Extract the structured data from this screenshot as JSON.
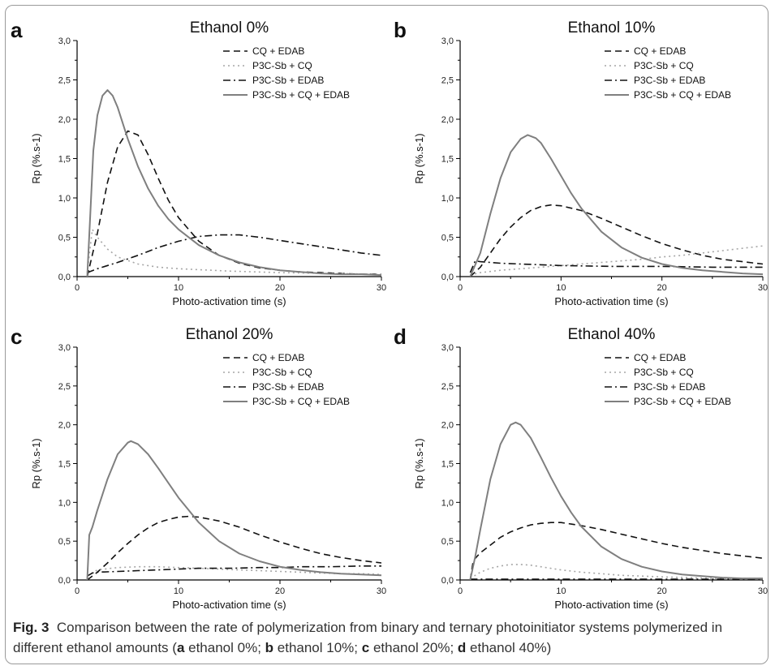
{
  "caption": {
    "label": "Fig. 3",
    "pre": "Comparison between the rate of polymerization from binary and ternary photoinitiator systems polymerized in different ethanol amounts (",
    "items": [
      {
        "letter": "a",
        "text": " ethanol 0%; "
      },
      {
        "letter": "b",
        "text": " ethanol 10%; "
      },
      {
        "letter": "c",
        "text": " ethanol 20%; "
      },
      {
        "letter": "d",
        "text": " ethanol 40%"
      }
    ],
    "post": ")"
  },
  "colors": {
    "dark": "#111111",
    "light_gray": "#a6a6a6",
    "mid_gray": "#7f7f7f",
    "axis": "#000000"
  },
  "chart_data": [
    {
      "type": "line",
      "panel": "a",
      "title": "Ethanol 0%",
      "xlabel": "Photo-activation time (s)",
      "ylabel": "Rp (%.s-1)",
      "xlim": [
        0,
        30
      ],
      "ylim": [
        0,
        3
      ],
      "xticks": [
        "0",
        "10",
        "20",
        "30"
      ],
      "yticks": [
        "0,0",
        "0,5",
        "1,0",
        "1,5",
        "2,0",
        "2,5",
        "3,0"
      ],
      "grid": false,
      "legend": "top-right",
      "series": [
        {
          "name": "CQ + EDAB",
          "style": "dash",
          "x": [
            1,
            2,
            3,
            4,
            5,
            6,
            7,
            8,
            9,
            10,
            12,
            14,
            16,
            18,
            20,
            22,
            24,
            26,
            28,
            30
          ],
          "y": [
            0,
            0.55,
            1.2,
            1.65,
            1.85,
            1.8,
            1.55,
            1.25,
            0.97,
            0.75,
            0.45,
            0.27,
            0.17,
            0.11,
            0.08,
            0.06,
            0.05,
            0.04,
            0.03,
            0.03
          ]
        },
        {
          "name": "P3C-Sb + CQ",
          "style": "dot",
          "x": [
            1,
            1.5,
            2,
            3,
            4,
            6,
            8,
            10,
            15,
            20,
            25,
            30
          ],
          "y": [
            0.05,
            0.6,
            0.5,
            0.35,
            0.25,
            0.16,
            0.12,
            0.1,
            0.07,
            0.05,
            0.04,
            0.03
          ]
        },
        {
          "name": "P3C-Sb + EDAB",
          "style": "dashdot",
          "x": [
            1,
            2,
            4,
            6,
            8,
            10,
            12,
            14,
            16,
            18,
            20,
            22,
            24,
            26,
            28,
            30
          ],
          "y": [
            0.05,
            0.1,
            0.18,
            0.27,
            0.37,
            0.45,
            0.51,
            0.53,
            0.53,
            0.5,
            0.46,
            0.42,
            0.38,
            0.34,
            0.3,
            0.27
          ]
        },
        {
          "name": "P3C-Sb + CQ + EDAB",
          "style": "solid",
          "x": [
            1,
            1.3,
            1.6,
            2,
            2.5,
            3,
            3.5,
            4,
            5,
            6,
            7,
            8,
            9,
            10,
            12,
            14,
            16,
            18,
            20,
            22,
            24,
            26,
            28,
            30
          ],
          "y": [
            0,
            0.8,
            1.6,
            2.05,
            2.3,
            2.37,
            2.3,
            2.15,
            1.75,
            1.4,
            1.12,
            0.9,
            0.73,
            0.6,
            0.4,
            0.27,
            0.18,
            0.12,
            0.08,
            0.06,
            0.04,
            0.03,
            0.03,
            0.02
          ]
        }
      ]
    },
    {
      "type": "line",
      "panel": "b",
      "title": "Ethanol 10%",
      "xlabel": "Photo-activation time (s)",
      "ylabel": "Rp (%.s-1)",
      "xlim": [
        0,
        30
      ],
      "ylim": [
        0,
        3
      ],
      "xticks": [
        "0",
        "10",
        "20",
        "30"
      ],
      "yticks": [
        "0,0",
        "0,5",
        "1,0",
        "1,5",
        "2,0",
        "2,5",
        "3,0"
      ],
      "grid": false,
      "legend": "top-right",
      "series": [
        {
          "name": "CQ + EDAB",
          "style": "dash",
          "x": [
            1,
            2,
            3,
            4,
            5,
            6,
            7,
            8,
            9,
            10,
            12,
            14,
            16,
            18,
            20,
            22,
            24,
            26,
            28,
            30
          ],
          "y": [
            0,
            0.12,
            0.3,
            0.48,
            0.63,
            0.75,
            0.84,
            0.89,
            0.91,
            0.9,
            0.84,
            0.74,
            0.63,
            0.52,
            0.42,
            0.34,
            0.27,
            0.22,
            0.19,
            0.16
          ]
        },
        {
          "name": "P3C-Sb + CQ",
          "style": "dot",
          "x": [
            1,
            2,
            4,
            6,
            8,
            10,
            12,
            14,
            16,
            18,
            20,
            22,
            24,
            26,
            28,
            30
          ],
          "y": [
            0.02,
            0.05,
            0.08,
            0.1,
            0.12,
            0.14,
            0.16,
            0.18,
            0.2,
            0.22,
            0.25,
            0.27,
            0.3,
            0.33,
            0.36,
            0.39
          ]
        },
        {
          "name": "P3C-Sb + EDAB",
          "style": "dashdot",
          "x": [
            1,
            1.5,
            2,
            4,
            6,
            8,
            10,
            15,
            20,
            25,
            30
          ],
          "y": [
            0.05,
            0.2,
            0.19,
            0.17,
            0.16,
            0.15,
            0.14,
            0.13,
            0.13,
            0.12,
            0.12
          ]
        },
        {
          "name": "P3C-Sb + CQ + EDAB",
          "style": "solid",
          "x": [
            1,
            2,
            3,
            4,
            5,
            6,
            6.7,
            7.5,
            8,
            9,
            10,
            11,
            12,
            14,
            16,
            18,
            20,
            22,
            24,
            26,
            28,
            30
          ],
          "y": [
            0,
            0.3,
            0.8,
            1.25,
            1.58,
            1.75,
            1.8,
            1.76,
            1.7,
            1.5,
            1.28,
            1.06,
            0.87,
            0.57,
            0.37,
            0.24,
            0.16,
            0.11,
            0.08,
            0.06,
            0.04,
            0.03
          ]
        }
      ]
    },
    {
      "type": "line",
      "panel": "c",
      "title": "Ethanol 20%",
      "xlabel": "Photo-activation time (s)",
      "ylabel": "Rp (%.s-1)",
      "xlim": [
        0,
        30
      ],
      "ylim": [
        0,
        3
      ],
      "xticks": [
        "0",
        "10",
        "20",
        "30"
      ],
      "yticks": [
        "0,0",
        "0,5",
        "1,0",
        "1,5",
        "2,0",
        "2,5",
        "3,0"
      ],
      "grid": false,
      "legend": "top-right",
      "series": [
        {
          "name": "CQ + EDAB",
          "style": "dash",
          "x": [
            1,
            2,
            3,
            4,
            5,
            6,
            7,
            8,
            9,
            10,
            11,
            12,
            14,
            16,
            18,
            20,
            22,
            24,
            26,
            28,
            30
          ],
          "y": [
            0,
            0.1,
            0.22,
            0.35,
            0.47,
            0.58,
            0.67,
            0.74,
            0.78,
            0.81,
            0.82,
            0.81,
            0.76,
            0.68,
            0.58,
            0.49,
            0.41,
            0.34,
            0.29,
            0.25,
            0.22
          ]
        },
        {
          "name": "P3C-Sb + CQ",
          "style": "dot",
          "x": [
            1,
            2,
            4,
            6,
            8,
            10,
            12,
            14,
            16,
            18,
            20,
            22,
            24,
            26,
            28,
            30
          ],
          "y": [
            0.05,
            0.13,
            0.16,
            0.17,
            0.17,
            0.16,
            0.15,
            0.14,
            0.13,
            0.12,
            0.11,
            0.1,
            0.09,
            0.08,
            0.08,
            0.07
          ]
        },
        {
          "name": "P3C-Sb + EDAB",
          "style": "dashdot",
          "x": [
            1,
            1.5,
            2,
            4,
            6,
            8,
            10,
            12,
            15,
            18,
            20,
            22,
            25,
            28,
            30
          ],
          "y": [
            0.05,
            0.09,
            0.1,
            0.11,
            0.12,
            0.13,
            0.14,
            0.15,
            0.15,
            0.16,
            0.16,
            0.17,
            0.17,
            0.18,
            0.18
          ]
        },
        {
          "name": "P3C-Sb + CQ + EDAB",
          "style": "solid",
          "x": [
            1,
            1.2,
            1.5,
            2,
            3,
            4,
            5,
            5.3,
            6,
            7,
            8,
            9,
            10,
            11,
            12,
            14,
            16,
            18,
            20,
            22,
            24,
            26,
            28,
            30
          ],
          "y": [
            0,
            0.58,
            0.68,
            0.9,
            1.3,
            1.62,
            1.77,
            1.79,
            1.75,
            1.62,
            1.44,
            1.25,
            1.06,
            0.9,
            0.74,
            0.5,
            0.34,
            0.24,
            0.17,
            0.13,
            0.1,
            0.08,
            0.07,
            0.06
          ]
        }
      ]
    },
    {
      "type": "line",
      "panel": "d",
      "title": "Ethanol 40%",
      "xlabel": "Photo-activation time (s)",
      "ylabel": "Rp (%.s-1)",
      "xlim": [
        0,
        30
      ],
      "ylim": [
        0,
        3
      ],
      "xticks": [
        "0",
        "10",
        "20",
        "30"
      ],
      "yticks": [
        "0,0",
        "0,5",
        "1,0",
        "1,5",
        "2,0",
        "2,5",
        "3,0"
      ],
      "grid": false,
      "legend": "top-right",
      "series": [
        {
          "name": "CQ + EDAB",
          "style": "dash",
          "x": [
            1,
            1.3,
            2,
            3,
            4,
            5,
            6,
            7,
            8,
            9,
            10,
            11,
            12,
            14,
            16,
            18,
            20,
            22,
            24,
            26,
            28,
            30
          ],
          "y": [
            0,
            0.25,
            0.35,
            0.45,
            0.55,
            0.62,
            0.67,
            0.71,
            0.73,
            0.74,
            0.74,
            0.72,
            0.7,
            0.65,
            0.59,
            0.53,
            0.47,
            0.42,
            0.38,
            0.34,
            0.31,
            0.28
          ]
        },
        {
          "name": "P3C-Sb + CQ",
          "style": "dot",
          "x": [
            1,
            2,
            3,
            4,
            5,
            6,
            7,
            8,
            10,
            12,
            14,
            16,
            18,
            20,
            25,
            30
          ],
          "y": [
            0.02,
            0.1,
            0.15,
            0.18,
            0.2,
            0.2,
            0.19,
            0.17,
            0.13,
            0.1,
            0.08,
            0.06,
            0.05,
            0.04,
            0.02,
            0.02
          ]
        },
        {
          "name": "P3C-Sb + EDAB",
          "style": "dashdot",
          "x": [
            1,
            10,
            20,
            30
          ],
          "y": [
            0.01,
            0.01,
            0.01,
            0.01
          ]
        },
        {
          "name": "P3C-Sb + CQ + EDAB",
          "style": "solid",
          "x": [
            1,
            1.5,
            2,
            3,
            4,
            5,
            5.5,
            6,
            7,
            8,
            9,
            10,
            11,
            12,
            14,
            16,
            18,
            20,
            22,
            24,
            26,
            28,
            30
          ],
          "y": [
            0,
            0.3,
            0.65,
            1.3,
            1.75,
            2.0,
            2.03,
            2.0,
            1.83,
            1.58,
            1.32,
            1.08,
            0.87,
            0.69,
            0.43,
            0.27,
            0.17,
            0.11,
            0.07,
            0.05,
            0.03,
            0.02,
            0.02
          ]
        }
      ]
    }
  ]
}
